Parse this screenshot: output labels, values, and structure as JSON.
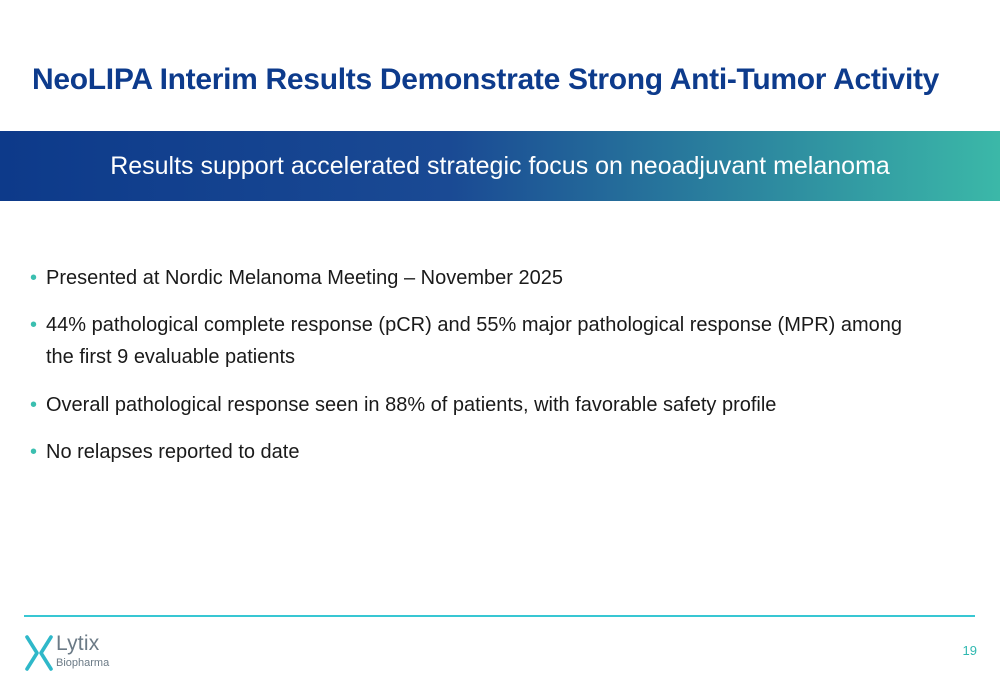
{
  "slide": {
    "title": "NeoLIPA Interim Results Demonstrate Strong Anti-Tumor Activity",
    "banner": "Results support accelerated strategic focus on neoadjuvant melanoma",
    "bullet_glyph": "•",
    "bullets": [
      "Presented at Nordic Melanoma Meeting – November 2025",
      "44% pathological complete response (pCR) and 55% major pathological response (MPR) among the first 9 evaluable patients",
      "Overall pathological response seen in 88% of patients, with favorable safety profile",
      "No relapses reported to date"
    ],
    "page_number": "19"
  },
  "logo": {
    "name": "Lytix",
    "subtitle": "Biopharma",
    "icon": "lytix-x-mark-icon"
  },
  "colors": {
    "title": "#0d3b8c",
    "banner_start": "#0d3a8a",
    "banner_mid": "#1a4a94",
    "banner_end": "#3bb8a8",
    "bullet_dot": "#3bbfb0",
    "footer_rule": "#38c7d3",
    "logo_mark": "#2fb8c9",
    "page_number": "#2fb8b0"
  }
}
